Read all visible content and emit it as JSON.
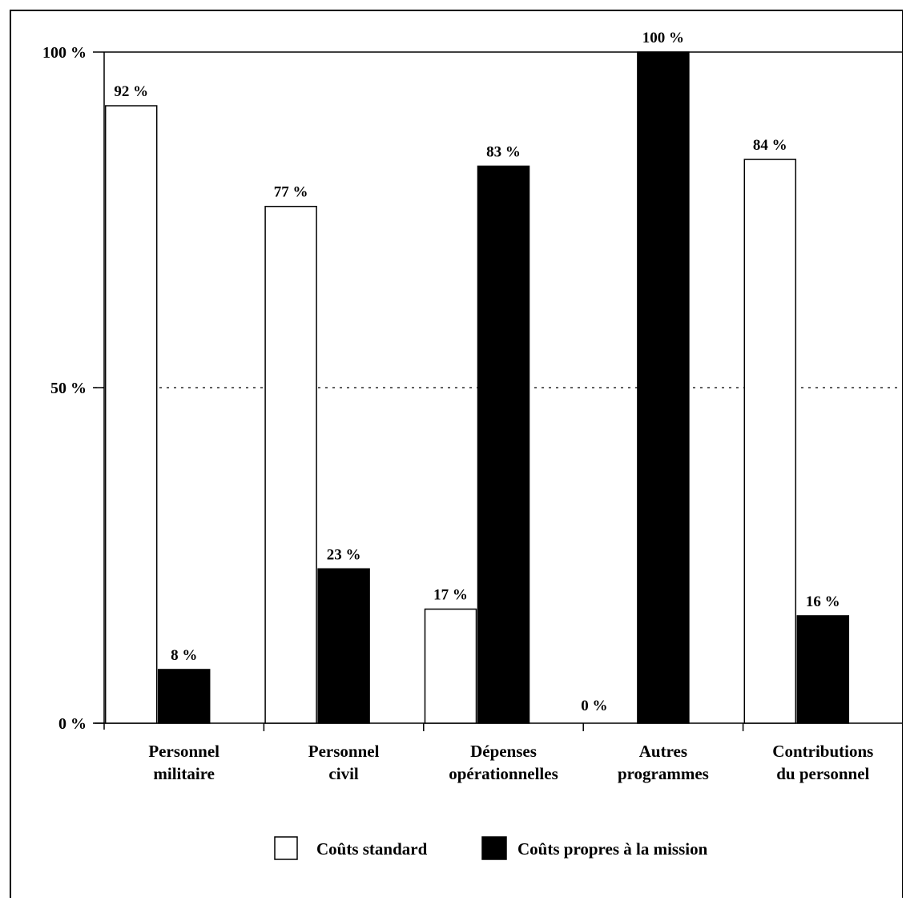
{
  "chart_data": {
    "type": "bar",
    "title": "",
    "xlabel": "",
    "ylabel": "",
    "ylim": [
      0,
      100
    ],
    "yticks": [
      "0 %",
      "50 %",
      "100 %"
    ],
    "grid": "dotted line at 50 %",
    "legend_position": "bottom",
    "categories": [
      [
        "Personnel",
        "militaire"
      ],
      [
        "Personnel",
        "civil"
      ],
      [
        "Dépenses",
        "opérationnelles"
      ],
      [
        "Autres",
        "programmes"
      ],
      [
        "Contributions",
        "du personnel"
      ]
    ],
    "series": [
      {
        "name": "Coûts standard",
        "color": "#ffffff",
        "values": [
          92,
          77,
          17,
          0,
          84
        ],
        "labels": [
          "92 %",
          "77 %",
          "17 %",
          "0 %",
          "84 %"
        ]
      },
      {
        "name": "Coûts propres à la mission",
        "color": "#000000",
        "values": [
          8,
          23,
          83,
          100,
          16
        ],
        "labels": [
          "8 %",
          "23 %",
          "83 %",
          "100 %",
          "16 %"
        ]
      }
    ]
  }
}
